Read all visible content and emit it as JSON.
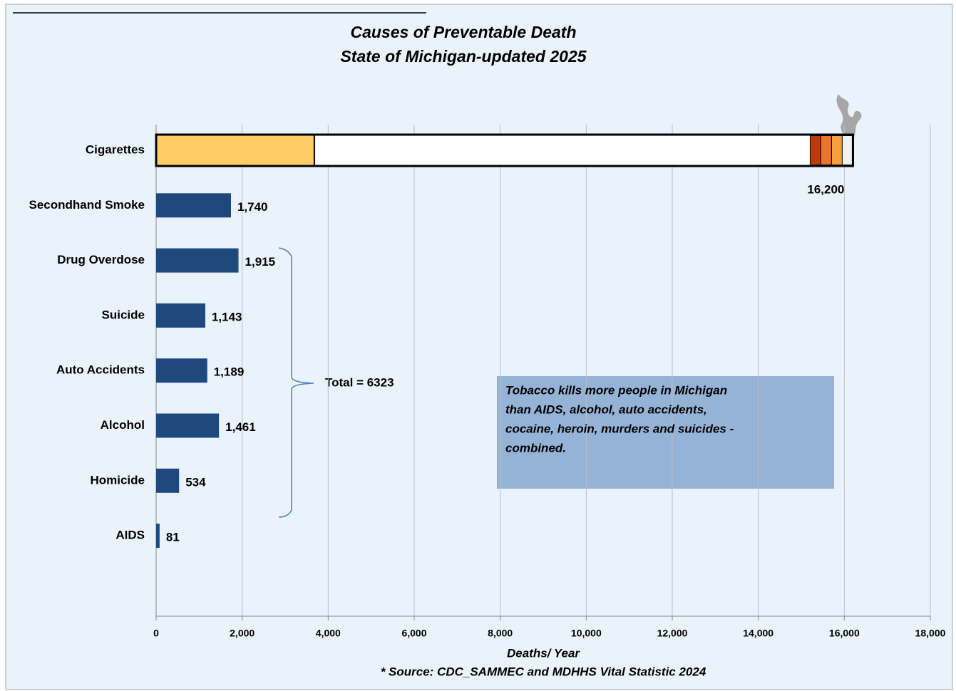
{
  "chart_data": {
    "type": "hbar",
    "title": "Causes of Preventable Death",
    "subtitle": "State of Michigan-updated 2025",
    "categories": [
      "Cigarettes",
      "Secondhand Smoke",
      "Drug Overdose",
      "Suicide",
      "Auto Accidents",
      "Alcohol",
      "Homicide",
      "AIDS"
    ],
    "values": [
      16200,
      1740,
      1915,
      1143,
      1189,
      1461,
      534,
      81
    ],
    "value_labels": [
      "16,200",
      "1,740",
      "1,915",
      "1,143",
      "1,189",
      "1,461",
      "534",
      "81"
    ],
    "colors": [
      "#ffffff",
      "#1f497d",
      "#1f497d",
      "#1f497d",
      "#1f497d",
      "#1f497d",
      "#1f497d",
      "#1f497d"
    ],
    "xlim": [
      0,
      18000
    ],
    "xticks": [
      0,
      {
        "value": 2000,
        "label": "2,000"
      },
      {
        "value": 4000,
        "label": "4,000"
      },
      {
        "value": 6000,
        "label": "6,000"
      },
      {
        "value": 8000,
        "label": "8,000"
      },
      {
        "value": 10000,
        "label": "10,000"
      },
      {
        "value": 12000,
        "label": "12,000"
      },
      {
        "value": 14000,
        "label": "14,000"
      },
      {
        "value": 16000,
        "label": "16,000"
      },
      {
        "value": 18000,
        "label": "18,000"
      }
    ],
    "grid": true,
    "xlabel": "Deaths/ Year",
    "source": "* Source: CDC_SAMMEC and MDHHS Vital  Statistic 2024",
    "bracket_label": "Total = 6323",
    "note_lines": [
      "Tobacco kills more people in Michigan",
      "than AIDS, alcohol, auto accidents,",
      "cocaine, heroin, murders and suicides -",
      "combined."
    ]
  }
}
